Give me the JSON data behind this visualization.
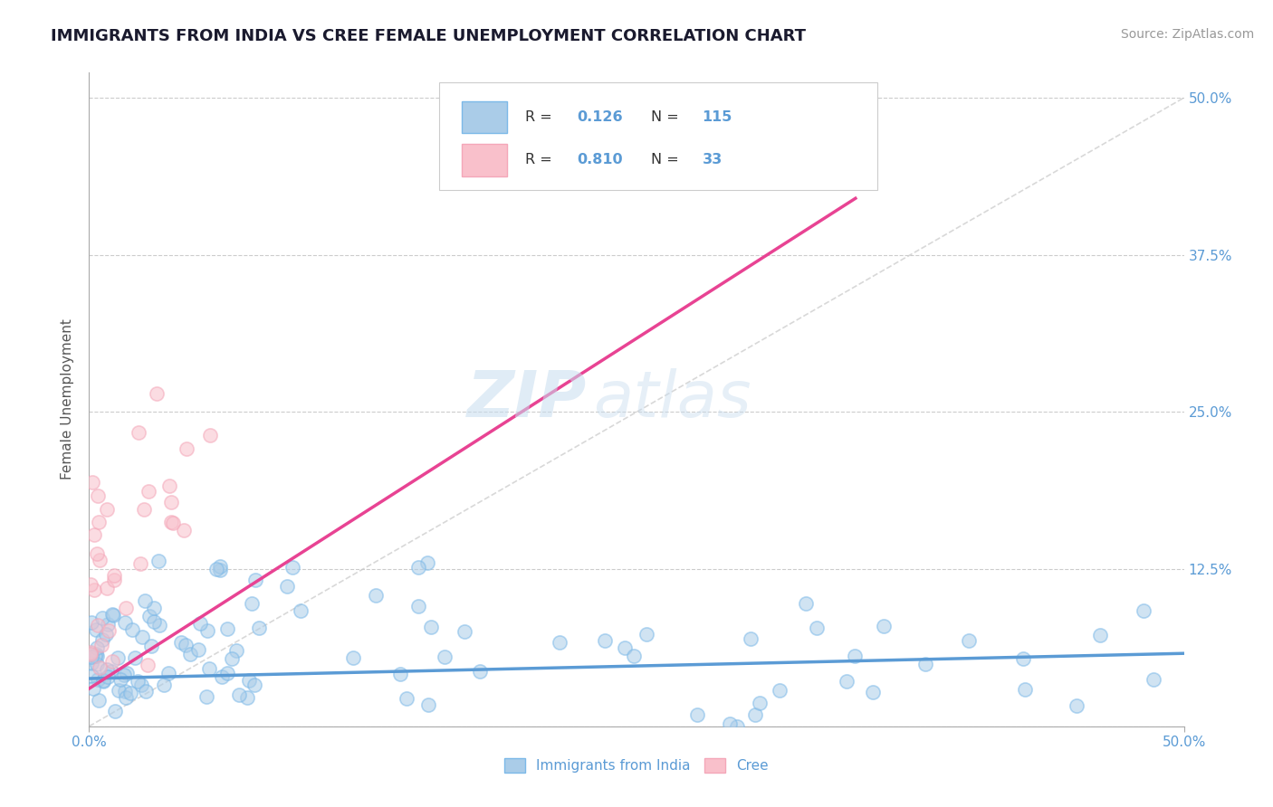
{
  "title": "IMMIGRANTS FROM INDIA VS CREE FEMALE UNEMPLOYMENT CORRELATION CHART",
  "source": "Source: ZipAtlas.com",
  "ylabel": "Female Unemployment",
  "xlim": [
    0.0,
    0.5
  ],
  "ylim": [
    0.0,
    0.52
  ],
  "background_color": "#ffffff",
  "grid_color": "#cccccc",
  "blue_line_x": [
    0.0,
    0.5
  ],
  "blue_line_y": [
    0.038,
    0.058
  ],
  "pink_line_x": [
    0.0,
    0.35
  ],
  "pink_line_y": [
    0.03,
    0.42
  ],
  "blue_color": "#5b9bd5",
  "blue_scatter_face": "#aacce8",
  "blue_scatter_edge": "#7cb9e8",
  "pink_color": "#e84393",
  "pink_scatter_face": "#f9c0cb",
  "pink_scatter_edge": "#f4a7b9",
  "scatter_size": 120,
  "scatter_alpha": 0.55,
  "scatter_linewidth": 1.2,
  "title_fontsize": 13,
  "source_fontsize": 10,
  "legend_r_blue": "0.126",
  "legend_n_blue": "115",
  "legend_r_pink": "0.810",
  "legend_n_pink": "33"
}
